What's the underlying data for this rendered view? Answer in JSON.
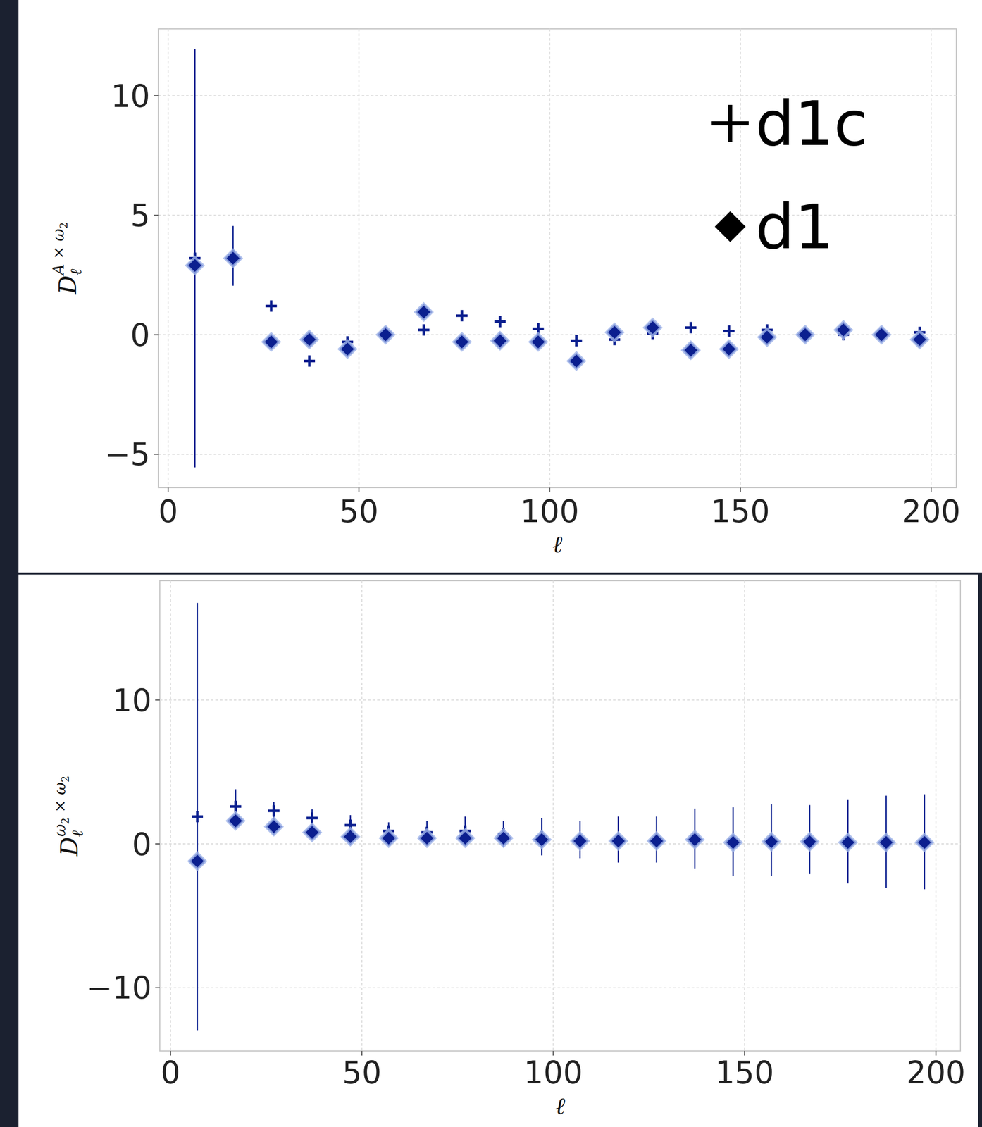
{
  "chart_data": [
    {
      "type": "scatter",
      "xlabel": "ℓ",
      "ylabel": {
        "text": "D",
        "sub": "ℓ",
        "sup": "A × ω",
        "sup_sub": "2"
      },
      "x": [
        7,
        17,
        27,
        37,
        47,
        57,
        67,
        77,
        87,
        97,
        107,
        117,
        127,
        137,
        147,
        157,
        167,
        177,
        187,
        197
      ],
      "xlim": [
        -2.6,
        206.6
      ],
      "ylim": [
        -6.4,
        12.8
      ],
      "xticks": [
        0,
        50,
        100,
        150,
        200
      ],
      "yticks": [
        {
          "value": -5,
          "label": "−5"
        },
        0,
        5,
        10
      ],
      "grid": true,
      "legend": "upper right",
      "series": [
        {
          "name": "d1c",
          "marker": "plus",
          "color": "#0b1f8f",
          "values": [
            3.2,
            3.3,
            1.2,
            -1.1,
            -0.3,
            0.1,
            0.2,
            0.8,
            0.55,
            0.25,
            -0.25,
            -0.2,
            0.05,
            0.3,
            0.15,
            0.2,
            0.0,
            0.0,
            0.0,
            0.1
          ],
          "errors": [
            8.75,
            1.25,
            0.15,
            0.15,
            0.15,
            0.1,
            0.1,
            0.1,
            0.1,
            0.1,
            0.1,
            0.1,
            0.1,
            0.1,
            0.1,
            0.1,
            0.1,
            0.1,
            0.1,
            0.1
          ]
        },
        {
          "name": "d1",
          "marker": "diamond",
          "color": "#0b1f8f",
          "values": [
            2.9,
            3.2,
            -0.3,
            -0.2,
            -0.6,
            0.0,
            0.95,
            -0.3,
            -0.25,
            -0.3,
            -1.1,
            0.1,
            0.3,
            -0.65,
            -0.6,
            -0.1,
            0.0,
            0.2,
            0.0,
            -0.2
          ]
        }
      ]
    },
    {
      "type": "scatter",
      "xlabel": "ℓ",
      "ylabel": {
        "text": "D",
        "sub": "ℓ",
        "sup": "ω",
        "sup_sub": "2",
        "sup2": " × ω",
        "sup2_sub": "2"
      },
      "x": [
        7,
        17,
        27,
        37,
        47,
        57,
        67,
        77,
        87,
        97,
        107,
        117,
        127,
        137,
        147,
        157,
        167,
        177,
        187,
        197
      ],
      "xlim": [
        -2.8,
        206.4
      ],
      "ylim": [
        -14.4,
        18.3
      ],
      "xticks": [
        0,
        50,
        100,
        150,
        200
      ],
      "yticks": [
        {
          "value": -10,
          "label": "−10"
        },
        0,
        10
      ],
      "grid": true,
      "legend": "none",
      "series": [
        {
          "name": "d1c",
          "marker": "plus",
          "color": "#0b1f8f",
          "values": [
            1.9,
            2.6,
            2.3,
            1.8,
            1.3,
            0.9,
            0.8,
            0.9,
            0.7,
            0.5,
            0.3,
            0.3,
            0.3,
            0.35,
            0.15,
            0.25,
            0.3,
            0.15,
            0.15,
            0.15
          ],
          "errors": [
            14.85,
            1.2,
            0.6,
            0.6,
            0.7,
            0.6,
            0.8,
            1.0,
            0.9,
            1.3,
            1.3,
            1.6,
            1.6,
            2.1,
            2.4,
            2.5,
            2.4,
            2.9,
            3.2,
            3.3
          ]
        },
        {
          "name": "d1",
          "marker": "diamond",
          "color": "#0b1f8f",
          "values": [
            -1.2,
            1.6,
            1.2,
            0.8,
            0.5,
            0.4,
            0.4,
            0.4,
            0.4,
            0.3,
            0.2,
            0.2,
            0.2,
            0.3,
            0.1,
            0.15,
            0.15,
            0.1,
            0.1,
            0.1
          ]
        }
      ]
    }
  ]
}
